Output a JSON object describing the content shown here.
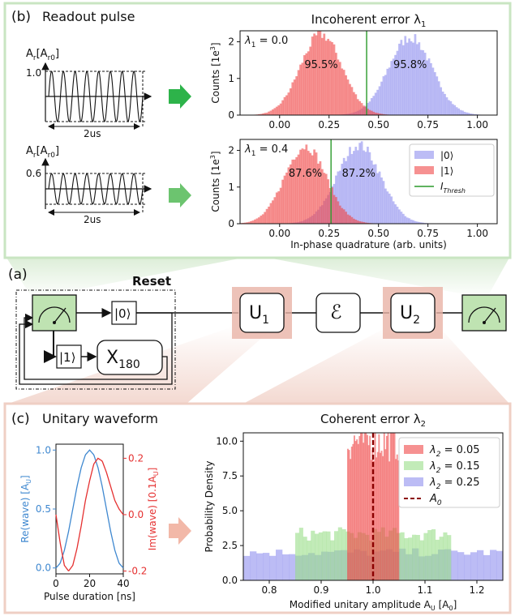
{
  "panel_b": {
    "label": "(b)",
    "title": "Readout pulse",
    "pulse_top": {
      "ylabel": "A",
      "ylabel_sub": "r",
      "ylabel_unit": "[A",
      "ylabel_unit_sub": "r0",
      "ylabel_close": "]",
      "amp_label": "1.0",
      "duration_label": "2us",
      "amplitude": 1.0,
      "cycles": 8
    },
    "pulse_bottom": {
      "ylabel": "A",
      "ylabel_sub": "r",
      "ylabel_unit": "[A",
      "ylabel_unit_sub": "r0",
      "ylabel_close": "]",
      "amp_label": "0.6",
      "duration_label": "2us",
      "amplitude": 0.6,
      "cycles": 8
    },
    "arrow_color_1": "#2db34a",
    "arrow_color_2": "#6cc46f"
  },
  "panel_a": {
    "label": "(a)",
    "reset_label": "Reset",
    "ket0": "|0⟩",
    "ket1": "|1⟩",
    "x_gate": "X",
    "x_gate_sub": "180",
    "u1": "U",
    "u1_sub": "1",
    "u2": "U",
    "u2_sub": "2",
    "channel": "ℰ",
    "icons": [
      "meter-icon",
      "meter-icon"
    ]
  },
  "panel_c": {
    "label": "(c)",
    "title": "Unitary waveform",
    "wave_xlabel": "Pulse duration [ns]",
    "wave_ylabel_left": "Re(wave) [A",
    "wave_ylabel_left_sub": "U",
    "wave_ylabel_left_close": "]",
    "wave_ylabel_right": "Im(wave) [0.1A",
    "wave_ylabel_right_sub": "U",
    "wave_ylabel_right_close": "]",
    "arrow_color": "#f2b8a8"
  },
  "colors": {
    "blue": "#8f8fee",
    "red": "#f04848",
    "green": "#99dd88",
    "green_line": "#2a9a2a",
    "dark_red": "#8b0000",
    "wave_blue": "#3f88d0",
    "wave_red": "#e53030",
    "panel_border_b": "#c9e5c2",
    "panel_border_c": "#efcfc4",
    "gate_fill": "#e9b3a6",
    "meter_fill": "#bfe3b2"
  },
  "chart_data": [
    {
      "type": "histogram",
      "title": "Incoherent error λ",
      "title_sub": "1",
      "annotation": "λ",
      "annotation_sub": "1",
      "annotation_value": " = 0.0",
      "ylabel": "Counts [1e",
      "ylabel_sup": "3",
      "ylabel_close": "]",
      "xlim": [
        -0.2,
        1.1
      ],
      "ylim": [
        0,
        2.3
      ],
      "xticks": [
        "0.00",
        "0.25",
        "0.50",
        "0.75",
        "1.00"
      ],
      "yticks": [
        "0",
        "1",
        "2"
      ],
      "threshold": 0.44,
      "series": [
        {
          "name": "|0⟩",
          "center": 0.66,
          "sigma": 0.11,
          "peak": 2.12,
          "percent_label": "95.8%"
        },
        {
          "name": "|1⟩",
          "center": 0.21,
          "sigma": 0.105,
          "peak": 2.2,
          "percent_label": "95.5%"
        }
      ]
    },
    {
      "type": "histogram",
      "annotation": "λ",
      "annotation_sub": "1",
      "annotation_value": " = 0.4",
      "ylabel": "Counts [1e",
      "ylabel_sup": "3",
      "ylabel_close": "]",
      "xlabel": "In-phase quadrature (arb. units)",
      "xlim": [
        -0.2,
        1.1
      ],
      "ylim": [
        0,
        2.3
      ],
      "xticks": [
        "0.00",
        "0.25",
        "0.50",
        "0.75",
        "1.00"
      ],
      "yticks": [
        "0",
        "1",
        "2"
      ],
      "threshold": 0.26,
      "legend": {
        "items": [
          {
            "label": "|0⟩"
          },
          {
            "label": "|1⟩"
          },
          {
            "label": "I",
            "sub": "Thresh"
          }
        ],
        "placement": "top-right"
      },
      "series": [
        {
          "name": "|0⟩",
          "center": 0.4,
          "sigma": 0.11,
          "peak": 2.15,
          "percent_label": "87.2%"
        },
        {
          "name": "|1⟩",
          "center": 0.13,
          "sigma": 0.105,
          "peak": 2.12,
          "percent_label": "87.6%"
        }
      ]
    },
    {
      "type": "line",
      "xlim": [
        0,
        40
      ],
      "xticks": [
        "0",
        "20",
        "40"
      ],
      "left_yticks": [
        "0.0",
        "0.5",
        "1.0"
      ],
      "right_yticks": [
        "-0.2",
        "0.0",
        "0.2"
      ],
      "left_ylim": [
        -0.05,
        1.05
      ],
      "right_ylim": [
        -0.21,
        0.25
      ],
      "series": [
        {
          "name": "Re",
          "axis": "left",
          "x": [
            0,
            2.5,
            5,
            7.5,
            10,
            12.5,
            15,
            17.5,
            20,
            22.5,
            25,
            27.5,
            30,
            32.5,
            35,
            37.5,
            40
          ],
          "y": [
            0.0,
            0.04,
            0.15,
            0.31,
            0.5,
            0.69,
            0.85,
            0.96,
            1.0,
            0.96,
            0.85,
            0.69,
            0.5,
            0.31,
            0.15,
            0.04,
            0.0
          ]
        },
        {
          "name": "Im",
          "axis": "right",
          "x": [
            0,
            2.5,
            5,
            7.5,
            10,
            12.5,
            15,
            17.5,
            20,
            22.5,
            25,
            27.5,
            30,
            32.5,
            35,
            37.5,
            40
          ],
          "y": [
            0.0,
            -0.1,
            -0.18,
            -0.2,
            -0.18,
            -0.12,
            -0.04,
            0.05,
            0.12,
            0.18,
            0.2,
            0.19,
            0.15,
            0.1,
            0.05,
            0.02,
            0.0
          ]
        }
      ]
    },
    {
      "type": "histogram",
      "title": "Coherent error λ",
      "title_sub": "2",
      "xlabel": "Modified unitary amplitude A",
      "xlabel_sub": "U",
      "xlabel_unit": " [A",
      "xlabel_unit_sub": "0",
      "xlabel_close": "]",
      "ylabel": "Probability Density",
      "xlim": [
        0.75,
        1.25
      ],
      "ylim": [
        0,
        10.6
      ],
      "xticks": [
        "0.8",
        "0.9",
        "1.0",
        "1.1",
        "1.2"
      ],
      "yticks": [
        "0.0",
        "2.5",
        "5.0",
        "7.5",
        "10.0"
      ],
      "reference_line": 1.0,
      "legend": {
        "items": [
          {
            "label": "λ",
            "sub": "2",
            "value": " = 0.05"
          },
          {
            "label": "λ",
            "sub": "2",
            "value": " = 0.15"
          },
          {
            "label": "λ",
            "sub": "2",
            "value": " = 0.25"
          },
          {
            "label": "A",
            "sub": "0"
          }
        ],
        "placement": "top-right"
      },
      "series": [
        {
          "name": "λ2 = 0.05",
          "low": 0.95,
          "high": 1.05,
          "density": 10.0
        },
        {
          "name": "λ2 = 0.15",
          "low": 0.85,
          "high": 1.15,
          "density": 3.33
        },
        {
          "name": "λ2 = 0.25",
          "low": 0.75,
          "high": 1.25,
          "density": 2.0
        }
      ]
    }
  ]
}
